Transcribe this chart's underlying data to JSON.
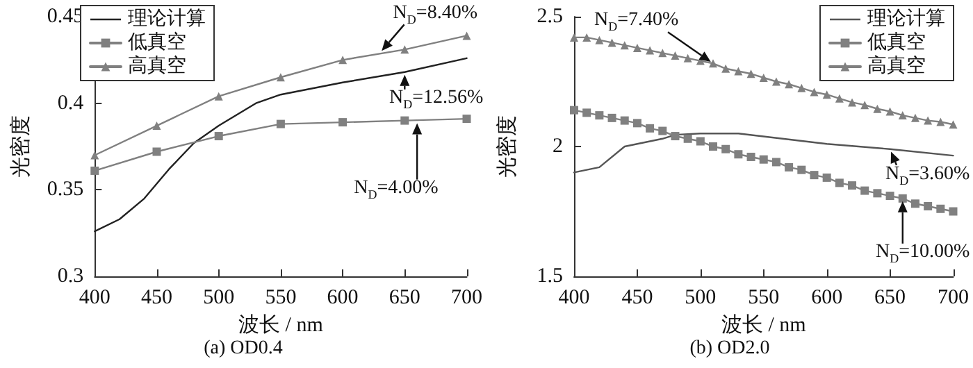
{
  "chart_data": [
    {
      "type": "line",
      "title": "(a) OD0.4",
      "xlabel": "波长 / nm",
      "ylabel": "光密度",
      "xlim": [
        400,
        700
      ],
      "xticks": [
        400,
        450,
        500,
        550,
        600,
        650,
        700
      ],
      "ylim": [
        0.3,
        0.45
      ],
      "yticks": [
        0.3,
        0.35,
        0.4,
        0.45
      ],
      "grid": false,
      "legend": "top left",
      "line_style": "solid",
      "series": [
        {
          "name": "理论计算",
          "color": "#222222",
          "marker": "none",
          "x": [
            400,
            420,
            440,
            460,
            480,
            500,
            530,
            550,
            600,
            650,
            700
          ],
          "values": [
            0.326,
            0.333,
            0.345,
            0.362,
            0.377,
            0.387,
            0.4,
            0.405,
            0.412,
            0.418,
            0.426
          ]
        },
        {
          "name": "低真空",
          "color": "#808080",
          "marker": "square",
          "x": [
            400,
            450,
            500,
            550,
            600,
            650,
            700
          ],
          "values": [
            0.361,
            0.372,
            0.381,
            0.388,
            0.389,
            0.39,
            0.391
          ]
        },
        {
          "name": "高真空",
          "color": "#808080",
          "marker": "triangle",
          "x": [
            400,
            450,
            500,
            550,
            600,
            650,
            700
          ],
          "values": [
            0.37,
            0.387,
            0.404,
            0.415,
            0.425,
            0.431,
            0.439
          ]
        }
      ],
      "annotations": [
        {
          "text": "N$_{D}$=8.40%",
          "x": 630,
          "y": 0.429
        },
        {
          "text": "N$_{D}$=12.56%",
          "x": 650,
          "y": 0.418
        },
        {
          "text": "N$_{D}$=4.00%",
          "x": 660,
          "y": 0.39
        }
      ]
    },
    {
      "type": "line",
      "title": "(b) OD2.0",
      "xlabel": "波长 / nm",
      "ylabel": "光密度",
      "xlim": [
        400,
        700
      ],
      "xticks": [
        400,
        450,
        500,
        550,
        600,
        650,
        700
      ],
      "ylim": [
        1.5,
        2.5
      ],
      "yticks": [
        1.5,
        2.0,
        2.5
      ],
      "grid": false,
      "legend": "top right",
      "line_style": "solid",
      "series": [
        {
          "name": "理论计算",
          "color": "#555555",
          "marker": "none",
          "x": [
            400,
            420,
            440,
            470,
            480,
            500,
            530,
            600,
            650,
            700
          ],
          "values": [
            1.9,
            1.92,
            2.0,
            2.03,
            2.045,
            2.05,
            2.05,
            2.01,
            1.99,
            1.965
          ]
        },
        {
          "name": "低真空",
          "color": "#808080",
          "marker": "square",
          "x": [
            400,
            410,
            420,
            430,
            440,
            450,
            460,
            470,
            480,
            490,
            500,
            510,
            520,
            530,
            540,
            550,
            560,
            570,
            580,
            590,
            600,
            610,
            620,
            630,
            640,
            650,
            660,
            670,
            680,
            690,
            700
          ],
          "values": [
            2.14,
            2.13,
            2.12,
            2.11,
            2.1,
            2.09,
            2.07,
            2.06,
            2.04,
            2.03,
            2.02,
            2.0,
            1.99,
            1.97,
            1.96,
            1.95,
            1.94,
            1.92,
            1.91,
            1.89,
            1.88,
            1.86,
            1.85,
            1.83,
            1.82,
            1.81,
            1.8,
            1.78,
            1.77,
            1.76,
            1.75
          ]
        },
        {
          "name": "高真空",
          "color": "#808080",
          "marker": "triangle",
          "x": [
            400,
            410,
            420,
            430,
            440,
            450,
            460,
            470,
            480,
            490,
            500,
            510,
            520,
            530,
            540,
            550,
            560,
            570,
            580,
            590,
            600,
            610,
            620,
            630,
            640,
            650,
            660,
            670,
            680,
            690,
            700
          ],
          "values": [
            2.42,
            2.42,
            2.41,
            2.4,
            2.39,
            2.38,
            2.37,
            2.36,
            2.35,
            2.34,
            2.33,
            2.32,
            2.3,
            2.29,
            2.28,
            2.265,
            2.25,
            2.24,
            2.225,
            2.21,
            2.2,
            2.185,
            2.17,
            2.16,
            2.145,
            2.135,
            2.12,
            2.11,
            2.1,
            2.095,
            2.085
          ]
        }
      ],
      "annotations": [
        {
          "text": "N$_{D}$=7.40%",
          "x": 510,
          "y": 2.32
        },
        {
          "text": "N$_{D}$=3.60%",
          "x": 650,
          "y": 1.99
        },
        {
          "text": "N$_{D}$=10.00%",
          "x": 660,
          "y": 1.8
        }
      ]
    }
  ]
}
